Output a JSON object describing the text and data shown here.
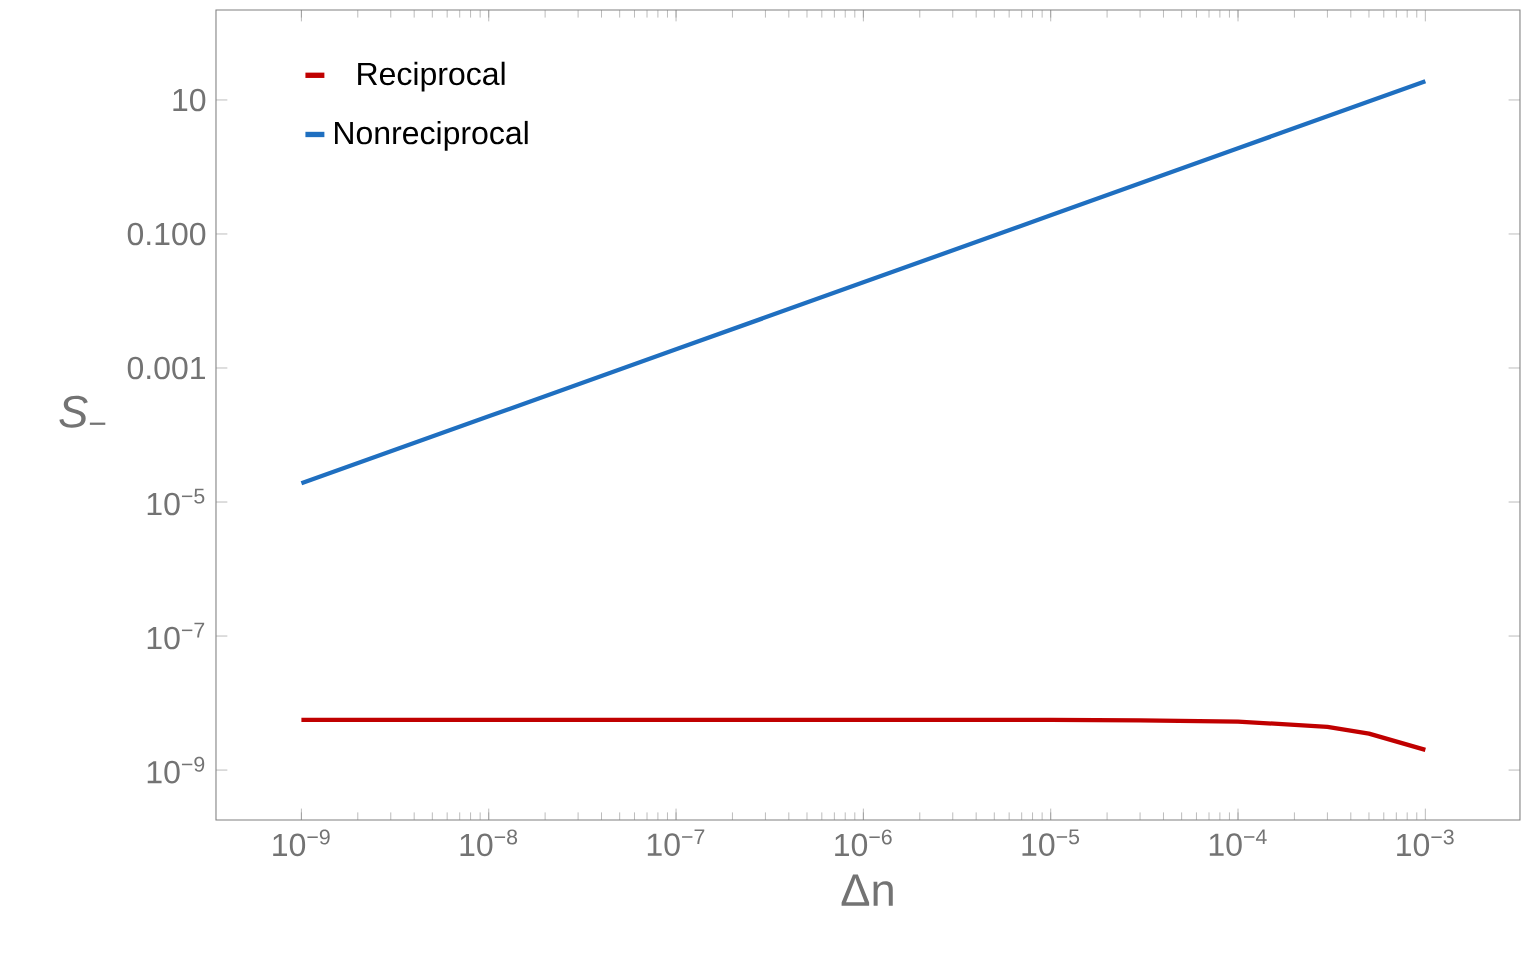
{
  "chart_data": {
    "type": "line",
    "xlabel": "Δn",
    "ylabel": "*S*$_{−}$",
    "log": "xy",
    "legend": "top left",
    "marker": "none",
    "line_style": "solid",
    "xlim": [
      3.5e-10,
      0.0032
    ],
    "ylim": [
      1.8e-10,
      220
    ],
    "xticks": [
      {
        "value": 1e-09,
        "label": "10$^{−9}$"
      },
      {
        "value": 1e-08,
        "label": "10$^{−8}$"
      },
      {
        "value": 1e-07,
        "label": "10$^{−7}$"
      },
      {
        "value": 1e-06,
        "label": "10$^{−6}$"
      },
      {
        "value": 1e-05,
        "label": "10$^{−5}$"
      },
      {
        "value": 0.0001,
        "label": "10$^{−4}$"
      },
      {
        "value": 0.001,
        "label": "10$^{−3}$"
      }
    ],
    "yticks": [
      {
        "value": 1e-09,
        "label": "10$^{−9}$"
      },
      {
        "value": 1e-07,
        "label": "10$^{−7}$"
      },
      {
        "value": 1e-05,
        "label": "10$^{−5}$"
      },
      0.001,
      {
        "value": 0.1,
        "label": "0.100"
      },
      10
    ],
    "series": [
      {
        "name": "Reciprocal",
        "color": "#c00000",
        "x": [
          1e-09,
          1e-08,
          1e-07,
          1e-06,
          1e-05,
          3e-05,
          0.0001,
          0.0003,
          0.0005,
          0.001
        ],
        "values": [
          5.6e-09,
          5.6e-09,
          5.6e-09,
          5.6e-09,
          5.6e-09,
          5.5e-09,
          5.3e-09,
          4.4e-09,
          3.5e-09,
          2e-09
        ]
      },
      {
        "name": "Nonreciprocal",
        "color": "#1f6fc0",
        "x": [
          1e-09,
          1e-08,
          1e-07,
          1e-06,
          1e-05,
          0.0001,
          0.001
        ],
        "values": [
          1.9e-05,
          0.00019,
          0.0019,
          0.019,
          0.19,
          1.9,
          19
        ]
      }
    ]
  }
}
